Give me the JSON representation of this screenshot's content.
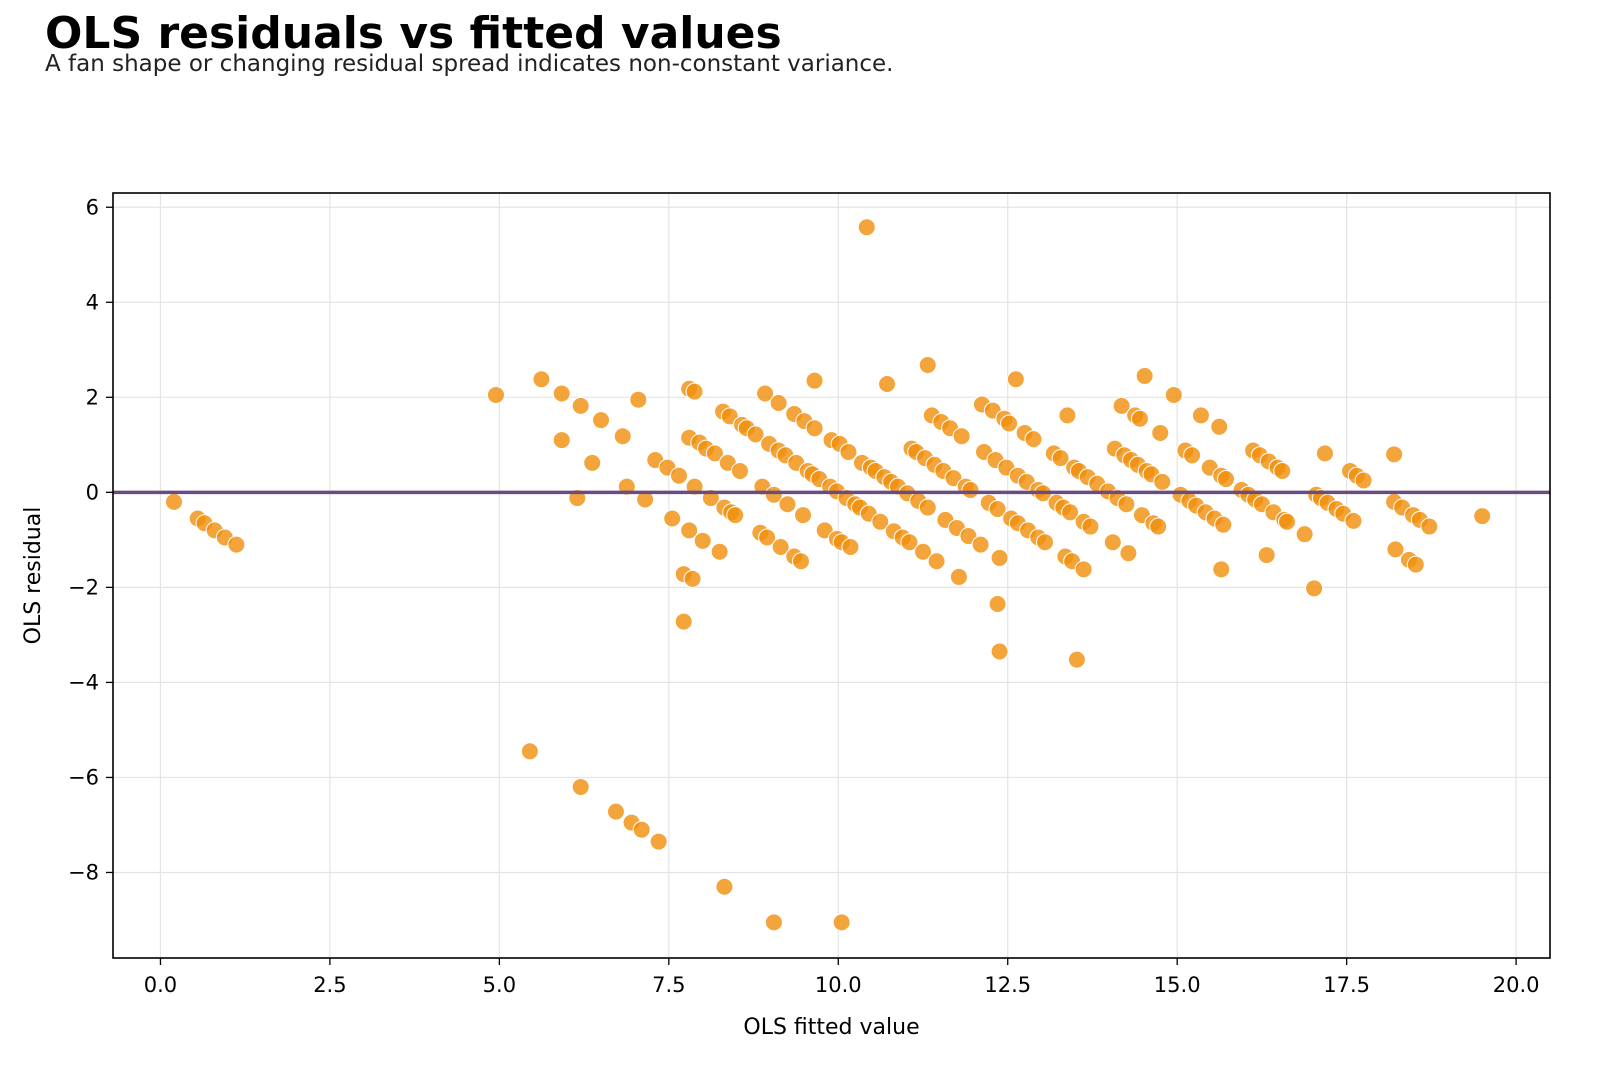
{
  "chart_data": {
    "type": "scatter",
    "title": "OLS residuals vs fitted values",
    "subtitle": "A fan shape or changing residual spread indicates non-constant variance.",
    "xlabel": "OLS fitted value",
    "ylabel": "OLS residual",
    "xlim": [
      -0.7,
      20.5
    ],
    "ylim": [
      -9.8,
      6.3
    ],
    "xticks": [
      0.0,
      2.5,
      5.0,
      7.5,
      10.0,
      12.5,
      15.0,
      17.5,
      20.0
    ],
    "xtick_labels": [
      "0.0",
      "2.5",
      "5.0",
      "7.5",
      "10.0",
      "12.5",
      "15.0",
      "17.5",
      "20.0"
    ],
    "yticks": [
      6,
      4,
      2,
      0,
      -2,
      -4,
      -6,
      -8
    ],
    "ytick_labels": [
      "6",
      "4",
      "2",
      "0",
      "−2",
      "−4",
      "−6",
      "−8"
    ],
    "grid": true,
    "reference_line": {
      "y": 0,
      "color": "#6b4c80"
    },
    "point_color": "#f0900f",
    "points": [
      [
        0.2,
        -0.2
      ],
      [
        0.55,
        -0.55
      ],
      [
        0.65,
        -0.65
      ],
      [
        0.8,
        -0.8
      ],
      [
        0.95,
        -0.95
      ],
      [
        1.12,
        -1.1
      ],
      [
        4.95,
        2.05
      ],
      [
        5.45,
        -5.45
      ],
      [
        5.62,
        2.38
      ],
      [
        5.92,
        2.08
      ],
      [
        5.92,
        1.1
      ],
      [
        6.15,
        -0.12
      ],
      [
        6.2,
        1.82
      ],
      [
        6.2,
        -6.2
      ],
      [
        6.37,
        0.62
      ],
      [
        6.5,
        1.52
      ],
      [
        6.72,
        -6.72
      ],
      [
        6.82,
        1.18
      ],
      [
        6.88,
        0.12
      ],
      [
        6.95,
        -6.95
      ],
      [
        7.05,
        1.95
      ],
      [
        7.1,
        -7.1
      ],
      [
        7.15,
        -0.15
      ],
      [
        7.3,
        0.68
      ],
      [
        7.35,
        -7.35
      ],
      [
        7.48,
        0.52
      ],
      [
        7.55,
        -0.55
      ],
      [
        7.65,
        0.35
      ],
      [
        7.72,
        -1.72
      ],
      [
        7.72,
        -2.72
      ],
      [
        7.8,
        2.18
      ],
      [
        7.8,
        1.15
      ],
      [
        7.8,
        -0.8
      ],
      [
        7.85,
        -1.82
      ],
      [
        7.88,
        2.12
      ],
      [
        7.88,
        0.12
      ],
      [
        7.95,
        1.05
      ],
      [
        8.0,
        -1.02
      ],
      [
        8.05,
        0.92
      ],
      [
        8.12,
        -0.12
      ],
      [
        8.18,
        0.82
      ],
      [
        8.25,
        -1.25
      ],
      [
        8.3,
        1.7
      ],
      [
        8.32,
        -0.32
      ],
      [
        8.32,
        -8.3
      ],
      [
        8.37,
        0.62
      ],
      [
        8.4,
        1.6
      ],
      [
        8.42,
        -0.42
      ],
      [
        8.48,
        -0.48
      ],
      [
        8.55,
        0.45
      ],
      [
        8.58,
        1.42
      ],
      [
        8.65,
        1.35
      ],
      [
        8.78,
        1.22
      ],
      [
        8.85,
        -0.85
      ],
      [
        8.88,
        0.12
      ],
      [
        8.92,
        2.08
      ],
      [
        8.95,
        -0.95
      ],
      [
        8.98,
        1.02
      ],
      [
        9.05,
        -0.05
      ],
      [
        9.05,
        -9.05
      ],
      [
        9.12,
        1.88
      ],
      [
        9.12,
        0.88
      ],
      [
        9.15,
        -1.15
      ],
      [
        9.22,
        0.78
      ],
      [
        9.25,
        -0.25
      ],
      [
        9.35,
        1.65
      ],
      [
        9.35,
        -1.35
      ],
      [
        9.38,
        0.62
      ],
      [
        9.45,
        -1.45
      ],
      [
        9.48,
        -0.48
      ],
      [
        9.5,
        1.5
      ],
      [
        9.55,
        0.45
      ],
      [
        9.62,
        0.38
      ],
      [
        9.65,
        2.35
      ],
      [
        9.65,
        1.35
      ],
      [
        9.72,
        0.28
      ],
      [
        9.8,
        -0.8
      ],
      [
        9.88,
        0.12
      ],
      [
        9.9,
        1.1
      ],
      [
        9.98,
        0.02
      ],
      [
        9.98,
        -0.98
      ],
      [
        10.02,
        1.02
      ],
      [
        10.05,
        -1.05
      ],
      [
        10.05,
        -9.05
      ],
      [
        10.12,
        -0.12
      ],
      [
        10.15,
        0.85
      ],
      [
        10.18,
        -1.15
      ],
      [
        10.25,
        -0.25
      ],
      [
        10.32,
        -0.32
      ],
      [
        10.35,
        0.62
      ],
      [
        10.42,
        5.58
      ],
      [
        10.45,
        -0.45
      ],
      [
        10.48,
        0.52
      ],
      [
        10.55,
        0.45
      ],
      [
        10.62,
        -0.62
      ],
      [
        10.68,
        0.32
      ],
      [
        10.72,
        2.28
      ],
      [
        10.78,
        0.22
      ],
      [
        10.82,
        -0.82
      ],
      [
        10.88,
        0.12
      ],
      [
        10.95,
        -0.95
      ],
      [
        11.02,
        -0.02
      ],
      [
        11.05,
        -1.05
      ],
      [
        11.08,
        0.92
      ],
      [
        11.15,
        0.85
      ],
      [
        11.18,
        -0.18
      ],
      [
        11.25,
        -1.25
      ],
      [
        11.28,
        0.72
      ],
      [
        11.32,
        2.68
      ],
      [
        11.32,
        -0.32
      ],
      [
        11.38,
        1.62
      ],
      [
        11.42,
        0.58
      ],
      [
        11.45,
        -1.45
      ],
      [
        11.52,
        1.48
      ],
      [
        11.55,
        0.45
      ],
      [
        11.58,
        -0.58
      ],
      [
        11.65,
        1.35
      ],
      [
        11.7,
        0.3
      ],
      [
        11.75,
        -0.75
      ],
      [
        11.78,
        -1.78
      ],
      [
        11.82,
        1.18
      ],
      [
        11.88,
        0.12
      ],
      [
        11.92,
        -0.92
      ],
      [
        11.95,
        0.05
      ],
      [
        12.1,
        -1.1
      ],
      [
        12.12,
        1.85
      ],
      [
        12.15,
        0.85
      ],
      [
        12.22,
        -0.22
      ],
      [
        12.28,
        1.72
      ],
      [
        12.32,
        0.68
      ],
      [
        12.35,
        -0.35
      ],
      [
        12.35,
        -2.35
      ],
      [
        12.38,
        -3.35
      ],
      [
        12.38,
        -1.38
      ],
      [
        12.45,
        1.55
      ],
      [
        12.48,
        0.52
      ],
      [
        12.52,
        1.45
      ],
      [
        12.55,
        -0.55
      ],
      [
        12.62,
        2.38
      ],
      [
        12.65,
        0.35
      ],
      [
        12.65,
        -0.65
      ],
      [
        12.75,
        1.25
      ],
      [
        12.78,
        0.22
      ],
      [
        12.8,
        -0.8
      ],
      [
        12.88,
        1.12
      ],
      [
        12.95,
        0.05
      ],
      [
        12.95,
        -0.95
      ],
      [
        13.02,
        -0.02
      ],
      [
        13.05,
        -1.05
      ],
      [
        13.18,
        0.82
      ],
      [
        13.22,
        -0.22
      ],
      [
        13.28,
        0.72
      ],
      [
        13.32,
        -0.32
      ],
      [
        13.35,
        -1.35
      ],
      [
        13.38,
        1.62
      ],
      [
        13.42,
        -0.42
      ],
      [
        13.45,
        -1.45
      ],
      [
        13.48,
        0.52
      ],
      [
        13.52,
        -3.52
      ],
      [
        13.55,
        0.45
      ],
      [
        13.62,
        -0.62
      ],
      [
        13.62,
        -1.62
      ],
      [
        13.68,
        0.32
      ],
      [
        13.72,
        -0.72
      ],
      [
        13.82,
        0.18
      ],
      [
        13.98,
        0.02
      ],
      [
        14.05,
        -1.05
      ],
      [
        14.08,
        0.92
      ],
      [
        14.12,
        -0.12
      ],
      [
        14.18,
        1.82
      ],
      [
        14.22,
        0.78
      ],
      [
        14.25,
        -0.25
      ],
      [
        14.28,
        -1.28
      ],
      [
        14.32,
        0.68
      ],
      [
        14.38,
        1.62
      ],
      [
        14.42,
        0.58
      ],
      [
        14.45,
        1.55
      ],
      [
        14.48,
        -0.48
      ],
      [
        14.52,
        2.45
      ],
      [
        14.55,
        0.45
      ],
      [
        14.62,
        0.38
      ],
      [
        14.65,
        -0.65
      ],
      [
        14.72,
        -0.72
      ],
      [
        14.75,
        1.25
      ],
      [
        14.78,
        0.22
      ],
      [
        14.95,
        2.05
      ],
      [
        15.05,
        -0.05
      ],
      [
        15.12,
        0.88
      ],
      [
        15.18,
        -0.18
      ],
      [
        15.22,
        0.78
      ],
      [
        15.28,
        -0.28
      ],
      [
        15.35,
        1.62
      ],
      [
        15.42,
        -0.42
      ],
      [
        15.48,
        0.52
      ],
      [
        15.55,
        -0.55
      ],
      [
        15.62,
        1.38
      ],
      [
        15.65,
        0.35
      ],
      [
        15.65,
        -1.62
      ],
      [
        15.68,
        -0.68
      ],
      [
        15.72,
        0.28
      ],
      [
        15.95,
        0.05
      ],
      [
        16.05,
        -0.05
      ],
      [
        16.12,
        0.88
      ],
      [
        16.15,
        -0.15
      ],
      [
        16.22,
        0.78
      ],
      [
        16.25,
        -0.25
      ],
      [
        16.32,
        -1.32
      ],
      [
        16.35,
        0.65
      ],
      [
        16.42,
        -0.42
      ],
      [
        16.48,
        0.52
      ],
      [
        16.55,
        0.45
      ],
      [
        16.58,
        -0.58
      ],
      [
        16.62,
        -0.62
      ],
      [
        16.88,
        -0.88
      ],
      [
        17.02,
        -2.02
      ],
      [
        17.05,
        -0.05
      ],
      [
        17.12,
        -0.12
      ],
      [
        17.18,
        0.82
      ],
      [
        17.22,
        -0.22
      ],
      [
        17.35,
        -0.35
      ],
      [
        17.45,
        -0.45
      ],
      [
        17.55,
        0.45
      ],
      [
        17.6,
        -0.6
      ],
      [
        17.65,
        0.35
      ],
      [
        17.75,
        0.25
      ],
      [
        18.2,
        0.8
      ],
      [
        18.2,
        -0.2
      ],
      [
        18.22,
        -1.2
      ],
      [
        18.32,
        -0.32
      ],
      [
        18.42,
        -1.42
      ],
      [
        18.48,
        -0.48
      ],
      [
        18.52,
        -1.52
      ],
      [
        18.58,
        -0.58
      ],
      [
        18.72,
        -0.72
      ],
      [
        19.5,
        -0.5
      ]
    ]
  }
}
